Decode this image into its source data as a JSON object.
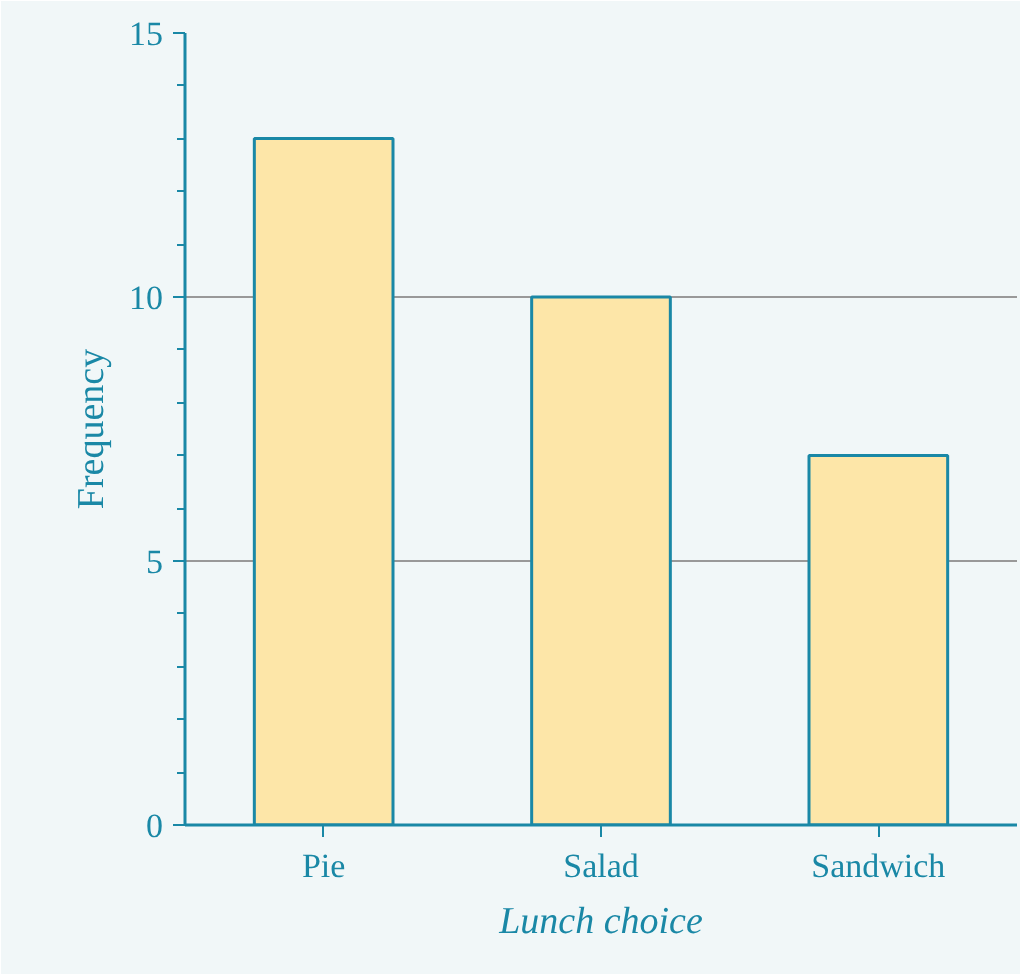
{
  "chart_data": {
    "type": "bar",
    "xlabel": "Lunch choice",
    "ylabel": "Frequency",
    "categories": [
      "Pie",
      "Salad",
      "Sandwich"
    ],
    "values": [
      13,
      10,
      7
    ],
    "color": "#fde6a8",
    "ylim": [
      0,
      15
    ],
    "yticks": [
      0,
      5,
      10,
      15
    ],
    "grid": "y"
  }
}
